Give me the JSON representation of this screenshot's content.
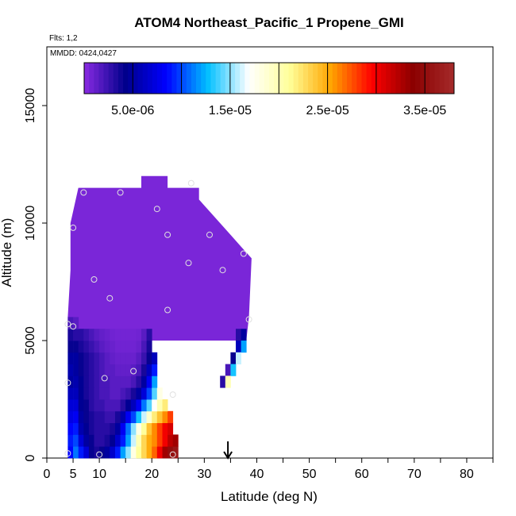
{
  "chart_data": {
    "type": "heatmap",
    "title": "ATOM4 Northeast_Pacific_1 Propene_GMI",
    "flights_note": "Flts: 1,2",
    "date_note": "MMDD: 0424,0427",
    "xlabel": "Latitude (deg N)",
    "ylabel": "Altitude (m)",
    "xlim": [
      0,
      85
    ],
    "ylim": [
      0,
      17500
    ],
    "x_ticks": [
      0,
      5,
      10,
      20,
      30,
      40,
      50,
      60,
      70,
      80
    ],
    "x_minor_ticks": [
      15,
      25,
      35,
      45,
      55,
      65,
      75,
      85
    ],
    "y_ticks": [
      0,
      5000,
      10000,
      15000
    ],
    "colorbar": {
      "min": 0,
      "max": 3.8e-05,
      "tick_values": [
        5e-06,
        1.5e-05,
        2.5e-05,
        3.5e-05
      ],
      "tick_labels": [
        "5.0e-06",
        "1.5e-05",
        "2.5e-05",
        "3.5e-05"
      ],
      "colors": [
        "#8a2be2",
        "#00008b",
        "#0000ff",
        "#00bfff",
        "#ffffff",
        "#ffff99",
        "#ffa500",
        "#ff0000",
        "#8b0000",
        "#a52a2a"
      ]
    },
    "arrow_marker_latitude": 34.5,
    "grid": false,
    "field": {
      "x_step": 1,
      "y_step": 500,
      "rows": [
        {
          "y": 0,
          "x0": 4,
          "x1": 24,
          "values": [
            8.5e-06,
            1.1e-05,
            9e-06,
            7e-06,
            4e-06,
            3.5e-06,
            4e-06,
            5e-06,
            6.5e-06,
            9e-06,
            1.2e-05,
            1.5e-05,
            1.8e-05,
            2.1e-05,
            2.3e-05,
            2.5e-05,
            2.7e-05,
            3e-05,
            3.3e-05,
            3.5e-05,
            3.6e-05
          ]
        },
        {
          "y": 500,
          "x0": 4,
          "x1": 24,
          "values": [
            9e-06,
            1e-05,
            7e-06,
            5e-06,
            4e-06,
            3e-06,
            3e-06,
            3.5e-06,
            4.5e-06,
            6.5e-06,
            9e-06,
            1.2e-05,
            1.6e-05,
            2e-05,
            2.3e-05,
            2.5e-05,
            2.6e-05,
            2.8e-05,
            3e-05,
            3.2e-05,
            3.3e-05
          ]
        },
        {
          "y": 1000,
          "x0": 4,
          "x1": 23,
          "values": [
            8.5e-06,
            9e-06,
            5.5e-06,
            4.5e-06,
            3.5e-06,
            3e-06,
            3e-06,
            3e-06,
            3.5e-06,
            5e-06,
            8e-06,
            1.1e-05,
            1.5e-05,
            1.8e-05,
            2.1e-05,
            2.4e-05,
            2.6e-05,
            2.8e-05,
            3e-05,
            3.1e-05
          ]
        },
        {
          "y": 1500,
          "x0": 4,
          "x1": 23,
          "values": [
            7.5e-06,
            8e-06,
            5e-06,
            4e-06,
            3.5e-06,
            3e-06,
            3e-06,
            2.5e-06,
            2.5e-06,
            3.5e-06,
            5.5e-06,
            8e-06,
            1e-05,
            1.3e-05,
            1.6e-05,
            1.9e-05,
            2.2e-05,
            2.4e-05,
            2.6e-05,
            2.8e-05
          ]
        },
        {
          "y": 2000,
          "x0": 4,
          "x1": 22,
          "values": [
            7e-06,
            7e-06,
            4.5e-06,
            4e-06,
            3e-06,
            2.5e-06,
            2.5e-06,
            2e-06,
            2e-06,
            2e-06,
            3e-06,
            4.5e-06,
            6e-06,
            8e-06,
            1.1e-05,
            1.4e-05,
            1.7e-05,
            2e-05,
            2.2e-05
          ]
        },
        {
          "y": 2500,
          "x0": 4,
          "x1": 21,
          "values": [
            6e-06,
            6e-06,
            4.5e-06,
            3.5e-06,
            3e-06,
            2.5e-06,
            2e-06,
            2e-06,
            1.5e-06,
            1.5e-06,
            2e-06,
            2.5e-06,
            3.5e-06,
            5e-06,
            7e-06,
            1e-05,
            1.4e-05,
            1.8e-05
          ]
        },
        {
          "y": 3000,
          "x0": 4,
          "x1": 20,
          "values": [
            5e-06,
            5.5e-06,
            4.5e-06,
            3.5e-06,
            3e-06,
            2.5e-06,
            2e-06,
            2e-06,
            1.5e-06,
            1.5e-06,
            1.5e-06,
            1.5e-06,
            2e-06,
            3e-06,
            5e-06,
            8e-06,
            1.2e-05
          ]
        },
        {
          "y": 3500,
          "x0": 4,
          "x1": 20,
          "values": [
            5.5e-06,
            5e-06,
            4e-06,
            3.5e-06,
            3e-06,
            2.5e-06,
            2e-06,
            1.5e-06,
            1.5e-06,
            1.2e-06,
            1.2e-06,
            1.2e-06,
            1.5e-06,
            2e-06,
            3.5e-06,
            6e-06,
            9e-06
          ]
        },
        {
          "y": 4000,
          "x0": 4,
          "x1": 20,
          "values": [
            5e-06,
            5e-06,
            4e-06,
            3.5e-06,
            3e-06,
            2.5e-06,
            2e-06,
            1.5e-06,
            1.2e-06,
            1e-06,
            1e-06,
            1e-06,
            1e-06,
            1.5e-06,
            2.5e-06,
            4e-06,
            6e-06
          ]
        },
        {
          "y": 4500,
          "x0": 4,
          "x1": 19,
          "values": [
            4e-06,
            4e-06,
            3.5e-06,
            3e-06,
            2.5e-06,
            2e-06,
            1.5e-06,
            1.2e-06,
            1e-06,
            8e-07,
            8e-07,
            8e-07,
            8e-07,
            1e-06,
            2e-06,
            3.5e-06
          ]
        },
        {
          "y": 5000,
          "x0": 4,
          "x1": 19,
          "values": [
            3.5e-06,
            3e-06,
            3e-06,
            2.5e-06,
            2e-06,
            1.5e-06,
            1.2e-06,
            1e-06,
            8e-07,
            7e-07,
            7e-07,
            7e-07,
            7e-07,
            8e-07,
            1.5e-06,
            3e-06
          ]
        },
        {
          "y": 5500,
          "x0": 4,
          "x1": 5,
          "values": [
            2e-06,
            1.5e-06
          ]
        }
      ],
      "bulk_region": {
        "value": 5e-07,
        "outline_lat_alt": [
          [
            4,
            5500
          ],
          [
            4,
            6000
          ],
          [
            4.5,
            8000
          ],
          [
            4.5,
            10000
          ],
          [
            5,
            10500
          ],
          [
            6,
            11500
          ],
          [
            15,
            11500
          ],
          [
            18,
            11500
          ],
          [
            18,
            12000
          ],
          [
            23,
            12000
          ],
          [
            23,
            11500
          ],
          [
            29,
            11500
          ],
          [
            29,
            11000
          ],
          [
            31,
            10500
          ],
          [
            33,
            10000
          ],
          [
            35,
            9500
          ],
          [
            37,
            9000
          ],
          [
            39,
            8500
          ],
          [
            38.5,
            6000
          ],
          [
            38,
            5000
          ],
          [
            19,
            5000
          ],
          [
            4,
            5000
          ]
        ]
      },
      "right_edge_patch": [
        {
          "lat": 36,
          "alt": 5000,
          "value": 3e-06
        },
        {
          "lat": 37,
          "alt": 5000,
          "value": 5e-06
        },
        {
          "lat": 36,
          "alt": 4500,
          "value": 6e-06
        },
        {
          "lat": 37,
          "alt": 4500,
          "value": 1.2e-05
        },
        {
          "lat": 35,
          "alt": 4000,
          "value": 4e-06
        },
        {
          "lat": 36,
          "alt": 4000,
          "value": 1.6e-05
        },
        {
          "lat": 34,
          "alt": 3500,
          "value": 2e-06
        },
        {
          "lat": 35,
          "alt": 3500,
          "value": 1.3e-05
        },
        {
          "lat": 33,
          "alt": 3000,
          "value": 3e-06
        },
        {
          "lat": 34,
          "alt": 3000,
          "value": 2e-05
        }
      ]
    },
    "sample_points": [
      {
        "lat": 4,
        "alt": 200
      },
      {
        "lat": 10,
        "alt": 150
      },
      {
        "lat": 24,
        "alt": 150
      },
      {
        "lat": 4,
        "alt": 3200
      },
      {
        "lat": 11,
        "alt": 3400
      },
      {
        "lat": 16.5,
        "alt": 3700
      },
      {
        "lat": 24,
        "alt": 2700
      },
      {
        "lat": 4,
        "alt": 5700
      },
      {
        "lat": 5,
        "alt": 5600
      },
      {
        "lat": 9,
        "alt": 7600
      },
      {
        "lat": 12,
        "alt": 6800
      },
      {
        "lat": 23,
        "alt": 6300
      },
      {
        "lat": 27,
        "alt": 8300
      },
      {
        "lat": 33.5,
        "alt": 8000
      },
      {
        "lat": 37.5,
        "alt": 8700
      },
      {
        "lat": 38.5,
        "alt": 5900
      },
      {
        "lat": 5,
        "alt": 9800
      },
      {
        "lat": 7,
        "alt": 11300
      },
      {
        "lat": 14,
        "alt": 11300
      },
      {
        "lat": 21,
        "alt": 10600
      },
      {
        "lat": 23,
        "alt": 9500
      },
      {
        "lat": 27.5,
        "alt": 11700
      },
      {
        "lat": 31,
        "alt": 9500
      }
    ]
  }
}
